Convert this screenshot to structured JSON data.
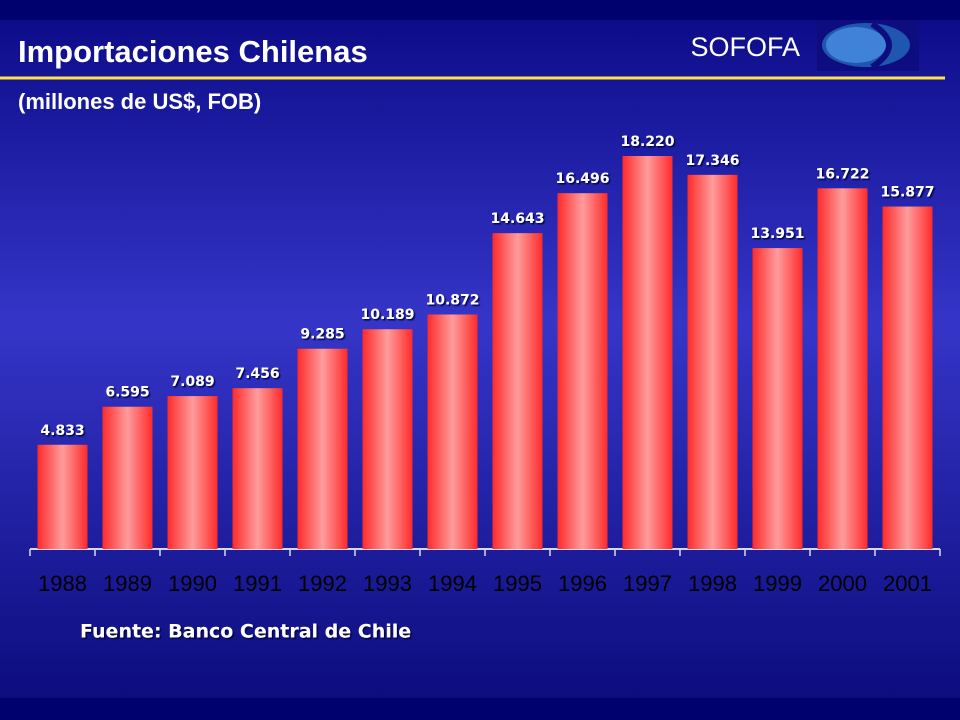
{
  "chart_data": {
    "type": "bar",
    "title": "Importaciones Chilenas",
    "subtitle": "(millones de US$, FOB)",
    "brand": "SOFOFA",
    "source": "Fuente: Banco Central de Chile",
    "categories": [
      "1988",
      "1989",
      "1990",
      "1991",
      "1992",
      "1993",
      "1994",
      "1995",
      "1996",
      "1997",
      "1998",
      "1999",
      "2000",
      "2001"
    ],
    "values": [
      4833,
      6595,
      7089,
      7456,
      9285,
      10189,
      10872,
      14643,
      16496,
      18220,
      17346,
      13951,
      16722,
      15877
    ],
    "value_labels": [
      "4.833",
      "6.595",
      "7.089",
      "7.456",
      "9.285",
      "10.189",
      "10.872",
      "14.643",
      "16.496",
      "18.220",
      "17.346",
      "13.951",
      "16.722",
      "15.877"
    ],
    "color": "#ff2a2a"
  }
}
